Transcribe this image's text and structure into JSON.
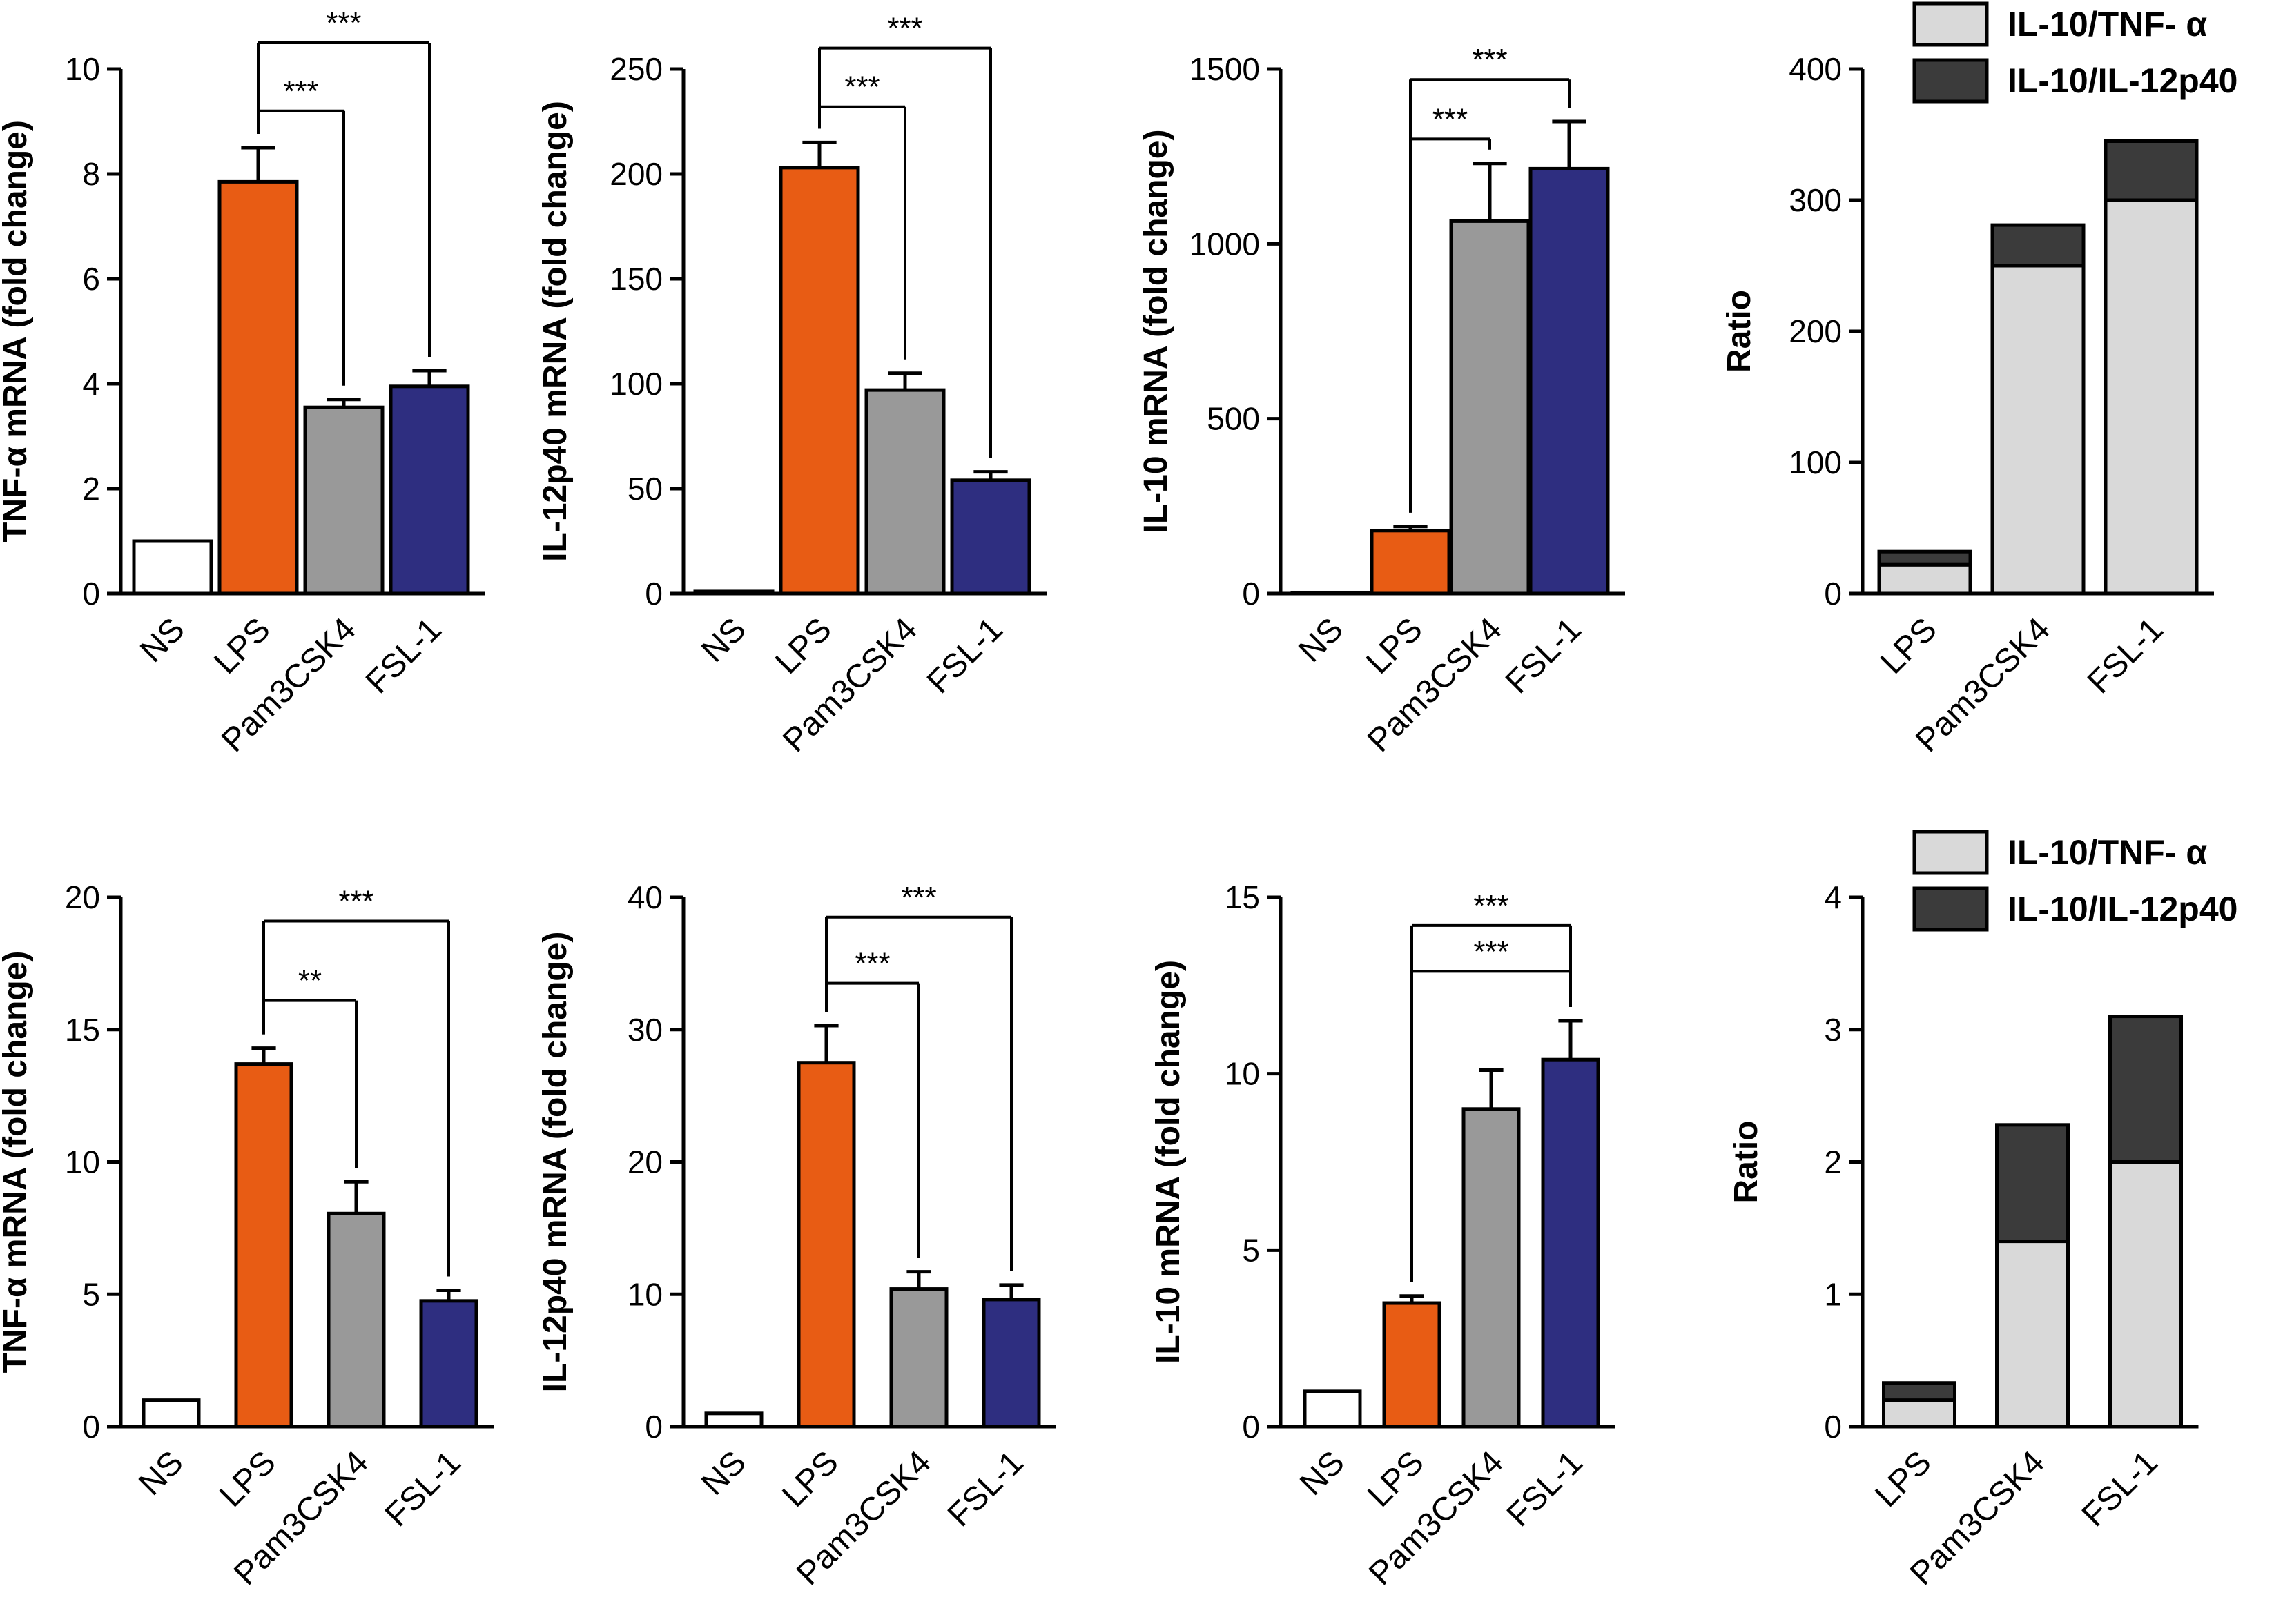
{
  "colors": {
    "NS": "#ffffff",
    "LPS": "#e85c14",
    "Pam3CSK4": "#999999",
    "FSL-1": "#2e2e80",
    "ratio_tnf": "#d9d9d9",
    "ratio_il12": "#3b3b3b",
    "axis": "#000000"
  },
  "chart_data": [
    {
      "type": "bar",
      "id": "top-tnf",
      "ylabel_parts": [
        "TNF-",
        "α",
        " mRNA (fold change)"
      ],
      "categories": [
        "NS",
        "LPS",
        "Pam3CSK4",
        "FSL-1"
      ],
      "values": [
        1,
        7.85,
        3.55,
        3.95
      ],
      "errors": [
        0,
        0.65,
        0.15,
        0.3
      ],
      "ylim": [
        0,
        10
      ],
      "yticks": [
        0,
        2,
        4,
        6,
        8,
        10
      ],
      "significance": [
        {
          "from": 1,
          "to": 2,
          "y": 9.2,
          "label": "***"
        },
        {
          "from": 1,
          "to": 3,
          "y": 10.5,
          "label": "***"
        }
      ]
    },
    {
      "type": "bar",
      "id": "top-il12",
      "ylabel_parts": [
        "IL-12p40 mRNA (fold change)"
      ],
      "categories": [
        "NS",
        "LPS",
        "Pam3CSK4",
        "FSL-1"
      ],
      "values": [
        1,
        203,
        97,
        54
      ],
      "errors": [
        0,
        12,
        8,
        4
      ],
      "ylim": [
        0,
        250
      ],
      "yticks": [
        0,
        50,
        100,
        150,
        200,
        250
      ],
      "significance": [
        {
          "from": 1,
          "to": 2,
          "y": 232,
          "label": "***"
        },
        {
          "from": 1,
          "to": 3,
          "y": 260,
          "label": "***"
        }
      ]
    },
    {
      "type": "bar",
      "id": "top-il10",
      "ylabel_parts": [
        "IL-10 mRNA (fold change)"
      ],
      "categories": [
        "NS",
        "LPS",
        "Pam3CSK4",
        "FSL-1"
      ],
      "values": [
        3,
        180,
        1065,
        1215
      ],
      "errors": [
        0,
        12,
        165,
        135
      ],
      "ylim": [
        0,
        1500
      ],
      "yticks": [
        0,
        500,
        1000,
        1500
      ],
      "significance": [
        {
          "from": 1,
          "to": 2,
          "y": 1300,
          "label": "***"
        },
        {
          "from": 1,
          "to": 3,
          "y": 1470,
          "label": "***"
        }
      ]
    },
    {
      "type": "stacked-bar",
      "id": "top-ratio",
      "ylabel_parts": [
        "Ratio"
      ],
      "categories": [
        "LPS",
        "Pam3CSK4",
        "FSL-1"
      ],
      "series": [
        {
          "name": "IL-10/TNF- α",
          "values": [
            22,
            250,
            300
          ]
        },
        {
          "name": "IL-10/IL-12p40",
          "values": [
            10,
            31,
            45
          ]
        }
      ],
      "ylim": [
        0,
        400
      ],
      "yticks": [
        0,
        100,
        200,
        300,
        400
      ],
      "legend": "top"
    },
    {
      "type": "bar",
      "id": "bottom-tnf",
      "ylabel_parts": [
        "TNF-",
        "α",
        " mRNA (fold change)"
      ],
      "categories": [
        "NS",
        "LPS",
        "Pam3CSK4",
        "FSL-1"
      ],
      "values": [
        1,
        13.7,
        8.05,
        4.75
      ],
      "errors": [
        0,
        0.6,
        1.2,
        0.4
      ],
      "ylim": [
        0,
        20
      ],
      "yticks": [
        0,
        5,
        10,
        15,
        20
      ],
      "significance": [
        {
          "from": 1,
          "to": 2,
          "y": 16.1,
          "label": "**"
        },
        {
          "from": 1,
          "to": 3,
          "y": 19.1,
          "label": "***"
        }
      ]
    },
    {
      "type": "bar",
      "id": "bottom-il12",
      "ylabel_parts": [
        "IL-12p40 mRNA (fold change)"
      ],
      "categories": [
        "NS",
        "LPS",
        "Pam3CSK4",
        "FSL-1"
      ],
      "values": [
        1,
        27.5,
        10.4,
        9.6
      ],
      "errors": [
        0,
        2.8,
        1.3,
        1.1
      ],
      "ylim": [
        0,
        40
      ],
      "yticks": [
        0,
        10,
        20,
        30,
        40
      ],
      "significance": [
        {
          "from": 1,
          "to": 2,
          "y": 33.5,
          "label": "***"
        },
        {
          "from": 1,
          "to": 3,
          "y": 38.5,
          "label": "***"
        }
      ]
    },
    {
      "type": "bar",
      "id": "bottom-il10",
      "ylabel_parts": [
        "IL-10 mRNA (fold change)"
      ],
      "categories": [
        "NS",
        "LPS",
        "Pam3CSK4",
        "FSL-1"
      ],
      "values": [
        1,
        3.5,
        9.0,
        10.4
      ],
      "errors": [
        0,
        0.2,
        1.1,
        1.1
      ],
      "ylim": [
        0,
        15
      ],
      "yticks": [
        0,
        5,
        10,
        15
      ],
      "significance": [
        {
          "from": 1,
          "to": 3,
          "y": 12.9,
          "label": "***"
        },
        {
          "from": 1,
          "to": 3,
          "y": 14.2,
          "label": "***"
        }
      ]
    },
    {
      "type": "stacked-bar",
      "id": "bottom-ratio",
      "ylabel_parts": [
        "Ratio"
      ],
      "categories": [
        "LPS",
        "Pam3CSK4",
        "FSL-1"
      ],
      "series": [
        {
          "name": "IL-10/TNF- α",
          "values": [
            0.2,
            1.4,
            2.0
          ]
        },
        {
          "name": "IL-10/IL-12p40",
          "values": [
            0.13,
            0.88,
            1.1
          ]
        }
      ],
      "ylim": [
        0,
        4
      ],
      "yticks": [
        0,
        1,
        2,
        3,
        4
      ],
      "legend": "top"
    }
  ]
}
